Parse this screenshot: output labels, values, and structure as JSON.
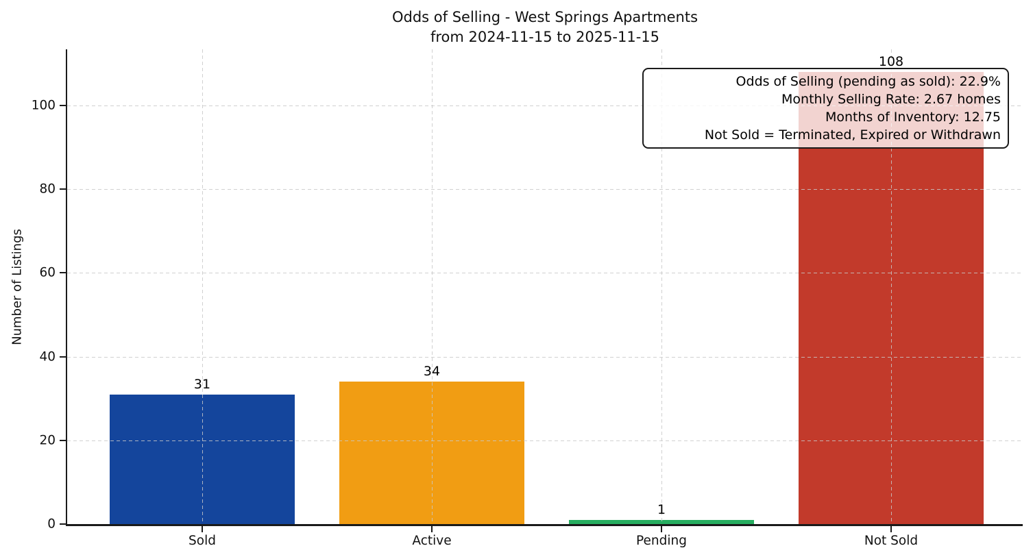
{
  "chart_data": {
    "type": "bar",
    "title": "Odds of Selling - West Springs Apartments",
    "subtitle": "from 2024-11-15 to 2025-11-15",
    "categories": [
      "Sold",
      "Active",
      "Pending",
      "Not Sold"
    ],
    "values": [
      31,
      34,
      1,
      108
    ],
    "bar_colors": [
      "#14459C",
      "#F19D13",
      "#27AE60",
      "#C23A2B"
    ],
    "ylabel": "Number of Listings",
    "xlabel": "",
    "yticks": [
      0,
      20,
      40,
      60,
      80,
      100
    ],
    "ylim": [
      0,
      113.4
    ],
    "grid": {
      "style": "dashed",
      "color": "#c8c8c8",
      "axes": "both",
      "above_bars": true
    },
    "legend": "none",
    "annotation": {
      "position": "top-right",
      "lines": [
        "Odds of Selling (pending as sold): 22.9%",
        "Monthly Selling Rate: 2.67 homes",
        "Months of Inventory: 12.75",
        "Not Sold = Terminated, Expired or Withdrawn"
      ],
      "stats": {
        "odds_of_selling_pending_as_sold_pct": 22.9,
        "monthly_selling_rate_homes": 2.67,
        "months_of_inventory": 12.75
      }
    }
  }
}
